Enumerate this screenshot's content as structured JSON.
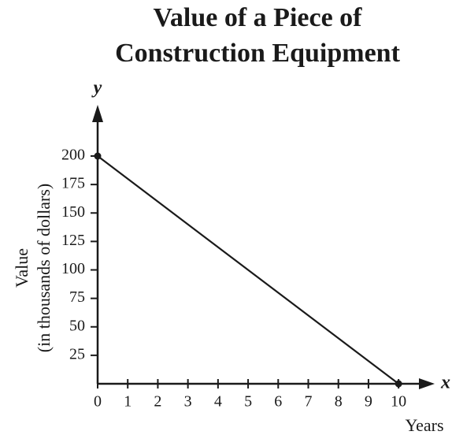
{
  "chart_data": {
    "type": "line",
    "title": "Value of a Piece of Construction Equipment",
    "xlabel": "Years",
    "ylabel": [
      "Value",
      "(in thousands of dollars)"
    ],
    "x_axis_name": "x",
    "y_axis_name": "y",
    "x": [
      0,
      10
    ],
    "series": [
      {
        "color": "#1a1a1a",
        "values": [
          200,
          0
        ]
      }
    ],
    "xlim": [
      0,
      11.2
    ],
    "ylim": [
      0,
      245
    ],
    "xticks": [
      0,
      1,
      2,
      3,
      4,
      5,
      6,
      7,
      8,
      9,
      10
    ],
    "yticks": [
      25,
      50,
      75,
      100,
      125,
      150,
      175,
      200
    ],
    "markers": true
  }
}
